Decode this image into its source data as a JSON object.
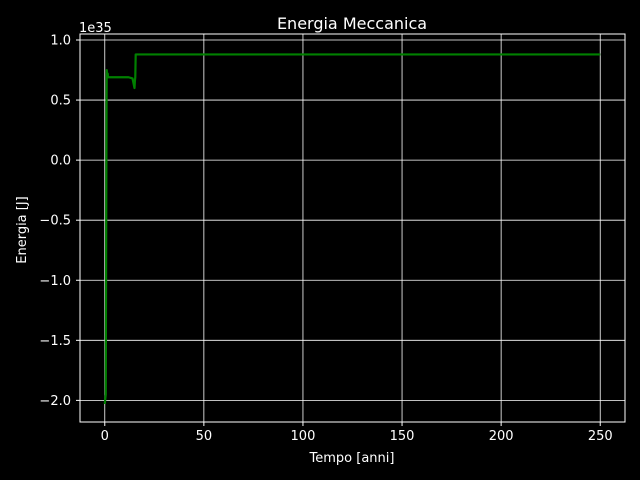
{
  "chart_data": {
    "type": "line",
    "title": "Energia Meccanica",
    "xlabel": "Tempo [anni]",
    "ylabel": "Energia [J]",
    "offset_label": "1e35",
    "xlim": [
      -12.5,
      262.5
    ],
    "ylim": [
      -2.18,
      1.05
    ],
    "xticks": [
      0,
      50,
      100,
      150,
      200,
      250
    ],
    "xtick_labels": [
      "0",
      "50",
      "100",
      "150",
      "200",
      "250"
    ],
    "yticks": [
      1.0,
      0.5,
      0.0,
      -0.5,
      -1.0,
      -1.5,
      -2.0
    ],
    "ytick_labels": [
      "1.0",
      "0.5",
      "0.0",
      "−0.5",
      "−1.0",
      "−1.5",
      "−2.0"
    ],
    "grid": true,
    "series": [
      {
        "color": "#008000",
        "x": [
          0.0,
          0.5,
          0.9,
          1.0,
          1.2,
          1.5,
          1.6,
          3,
          6,
          9,
          12,
          14,
          15.0,
          15.2,
          15.4,
          15.6,
          16,
          50,
          100,
          150,
          200,
          250
        ],
        "y": [
          -2.03,
          -1.95,
          0.5,
          0.75,
          0.69,
          0.72,
          0.69,
          0.69,
          0.69,
          0.69,
          0.69,
          0.68,
          0.6,
          0.66,
          0.69,
          0.88,
          0.88,
          0.88,
          0.88,
          0.88,
          0.88,
          0.88
        ]
      }
    ]
  }
}
